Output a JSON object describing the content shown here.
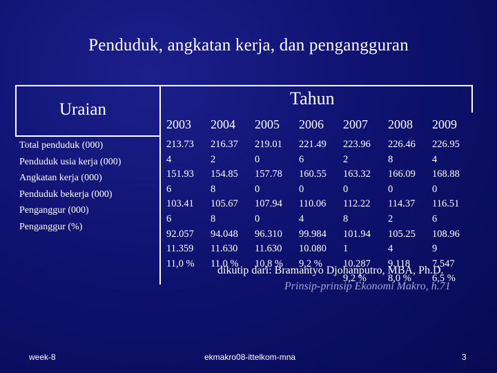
{
  "title": "Penduduk, angkatan kerja, dan pengangguran",
  "table": {
    "uraian_header": "Uraian",
    "tahun_header": "Tahun",
    "years": [
      "2003",
      "2004",
      "2005",
      "2006",
      "2007",
      "2008",
      "2009"
    ],
    "row_labels": [
      "Total penduduk (000)",
      "Penduduk usia kerja (000)",
      "Angkatan kerja (000)",
      "Penduduk bekerja (000)",
      "Penganggur (000)",
      "Penganggur (%)"
    ],
    "columns": [
      [
        "213.73",
        "4",
        "151.93",
        "6",
        "103.41",
        "6",
        "92.057",
        "11.359",
        "11,0 %"
      ],
      [
        "216.37",
        "2",
        "154.85",
        "8",
        "105.67",
        "8",
        "94.048",
        "11.630",
        "11,0 %"
      ],
      [
        "219.01",
        "0",
        "157.78",
        "0",
        "107.94",
        "0",
        "96.310",
        "11.630",
        "10,8 %"
      ],
      [
        "221.49",
        "6",
        "160.55",
        "0",
        "110.06",
        "4",
        "99.984",
        "10.080",
        "9,2 %"
      ],
      [
        "223.96",
        "2",
        "163.32",
        "0",
        "112.22",
        "8",
        "101.94",
        "1",
        "10.287",
        "9,2 %"
      ],
      [
        "226.46",
        "8",
        "166.09",
        "0",
        "114.37",
        "2",
        "105.25",
        "4",
        "9.118",
        "8,0 %"
      ],
      [
        "226.95",
        "4",
        "168.88",
        "0",
        "116.51",
        "6",
        "108.96",
        "9",
        "7.547",
        "6,5 %"
      ]
    ]
  },
  "source": {
    "credit": "dikutip dari: Bramantyo Djohanputro, MBA, Ph.D.",
    "book": "Prinsip-prinsip Ekonomi Makro, h.71"
  },
  "footer": {
    "left": "week-8",
    "center": "ekmakro08-ittelkom-mna",
    "page": "3"
  }
}
